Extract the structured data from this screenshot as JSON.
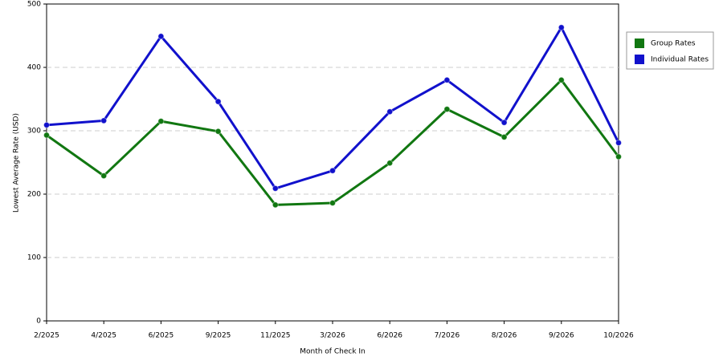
{
  "chart_data": {
    "type": "line",
    "x_label": "Month of Check In",
    "y_label": "Lowest Average Rate (USD)",
    "categories": [
      "2/2025",
      "4/2025",
      "6/2025",
      "9/2025",
      "11/2025",
      "3/2026",
      "6/2026",
      "7/2026",
      "8/2026",
      "9/2026",
      "10/2026"
    ],
    "series": [
      {
        "name": "Group Rates",
        "color": "#117711",
        "values": [
          293,
          229,
          315,
          299,
          183,
          186,
          249,
          334,
          290,
          380,
          259
        ]
      },
      {
        "name": "Individual Rates",
        "color": "#1111cc",
        "values": [
          309,
          316,
          449,
          346,
          209,
          237,
          330,
          380,
          313,
          463,
          281
        ]
      }
    ],
    "ylim": [
      0,
      500
    ],
    "yticks": [
      0,
      100,
      200,
      300,
      400,
      500
    ],
    "grid": true,
    "legend": "right"
  }
}
